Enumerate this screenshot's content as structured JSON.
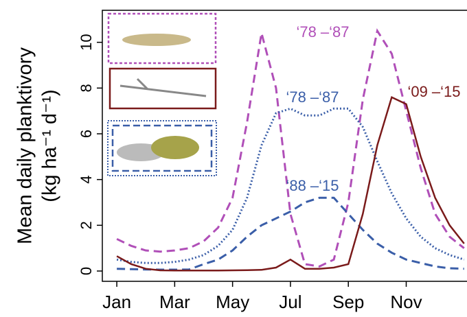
{
  "chart_data": {
    "type": "line",
    "y_label_lines": [
      "Mean daily planktivory",
      "(kg ha⁻¹ d⁻¹)"
    ],
    "x": [
      1,
      1.5,
      2,
      2.5,
      3,
      3.5,
      4,
      4.5,
      5,
      5.5,
      6,
      6.5,
      7,
      7.5,
      8,
      8.5,
      9,
      9.5,
      10,
      10.5,
      11,
      11.5,
      12,
      12.5,
      13
    ],
    "series": [
      {
        "name": "‘78 –‘87",
        "color": "#b04fb8",
        "style": "dashed",
        "values": [
          1.4,
          1.1,
          0.9,
          0.85,
          0.9,
          1.0,
          1.3,
          1.9,
          3.2,
          6.5,
          10.4,
          8,
          2.5,
          0.3,
          0.2,
          0.5,
          3,
          7.5,
          10.5,
          9.5,
          7,
          4.5,
          2.5,
          1.5,
          1.0
        ]
      },
      {
        "name": "‘78 –‘87",
        "color": "#3a5ea8",
        "style": "dotted",
        "values": [
          0.5,
          0.4,
          0.35,
          0.35,
          0.4,
          0.5,
          0.7,
          1.1,
          1.8,
          3.2,
          5.5,
          6.9,
          7.1,
          6.8,
          6.8,
          7.1,
          7.1,
          6.3,
          4.8,
          3.4,
          2.3,
          1.5,
          1.0,
          0.7,
          0.5
        ]
      },
      {
        "name": "‘88 –‘15",
        "color": "#3a5ea8",
        "style": "dashed",
        "values": [
          0.1,
          0.08,
          0.07,
          0.06,
          0.06,
          0.07,
          0.3,
          0.5,
          0.9,
          1.5,
          2.0,
          2.3,
          2.6,
          3.0,
          3.2,
          3.2,
          2.5,
          1.8,
          1.2,
          0.8,
          0.5,
          0.35,
          0.2,
          0.12,
          0.1
        ]
      },
      {
        "name": "‘09 –‘15",
        "color": "#7a1a1a",
        "style": "solid",
        "values": [
          0.65,
          0.3,
          0.1,
          0.03,
          0.02,
          0.02,
          0.02,
          0.02,
          0.03,
          0.04,
          0.05,
          0.15,
          0.5,
          0.1,
          0.1,
          0.15,
          0.3,
          2.5,
          5.5,
          7.6,
          7.3,
          5,
          3.2,
          2.0,
          1.2
        ]
      }
    ],
    "xlim": [
      0.5,
      13.1
    ],
    "xticks": [
      {
        "value": 1,
        "label": "Jan"
      },
      {
        "value": 3,
        "label": "Mar"
      },
      {
        "value": 5,
        "label": "May"
      },
      {
        "value": 7,
        "label": "Jul"
      },
      {
        "value": 9,
        "label": "Sep"
      },
      {
        "value": 11,
        "label": "Nov"
      }
    ],
    "ylim": [
      -0.45,
      11.4
    ],
    "yticks": [
      0,
      2,
      4,
      6,
      8,
      10
    ]
  }
}
